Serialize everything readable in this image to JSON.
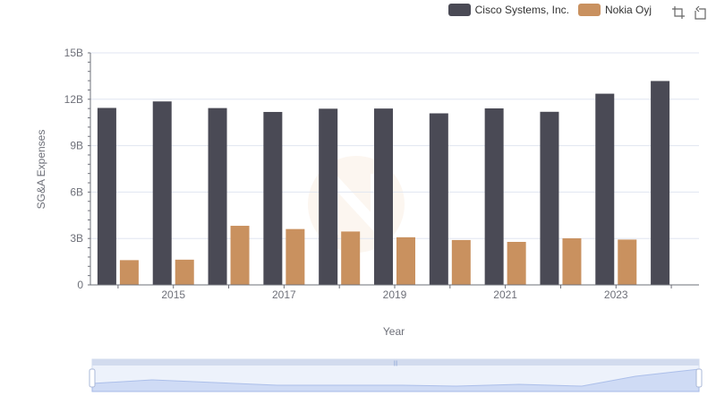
{
  "chart_data": {
    "type": "bar",
    "xlabel": "Year",
    "ylabel": "SG&A Expenses",
    "categories": [
      "2014",
      "2015",
      "2016",
      "2017",
      "2018",
      "2019",
      "2020",
      "2021",
      "2022",
      "2023",
      "2024"
    ],
    "x_tick_labels": [
      "2015",
      "2017",
      "2019",
      "2021",
      "2023"
    ],
    "y_tick_labels": [
      "0",
      "3B",
      "6B",
      "9B",
      "12B",
      "15B"
    ],
    "ylim": [
      0,
      15000000000
    ],
    "grid": true,
    "legend_position": "top-right",
    "series": [
      {
        "name": "Cisco Systems, Inc.",
        "color": "#4a4a55",
        "values": [
          11440000000,
          11860000000,
          11430000000,
          11180000000,
          11390000000,
          11400000000,
          11090000000,
          11410000000,
          11190000000,
          12360000000,
          13180000000
        ]
      },
      {
        "name": "Nokia Oyj",
        "color": "#c9915f",
        "values": [
          1600000000,
          1630000000,
          3820000000,
          3610000000,
          3450000000,
          3080000000,
          2900000000,
          2780000000,
          3010000000,
          2930000000,
          null
        ]
      }
    ]
  },
  "toolbar": {
    "icons": [
      "zoom-select-icon",
      "zoom-reset-icon"
    ]
  },
  "slider": {
    "handle_color": "#b3c5e8",
    "fill_color": "#dbe5f8"
  }
}
